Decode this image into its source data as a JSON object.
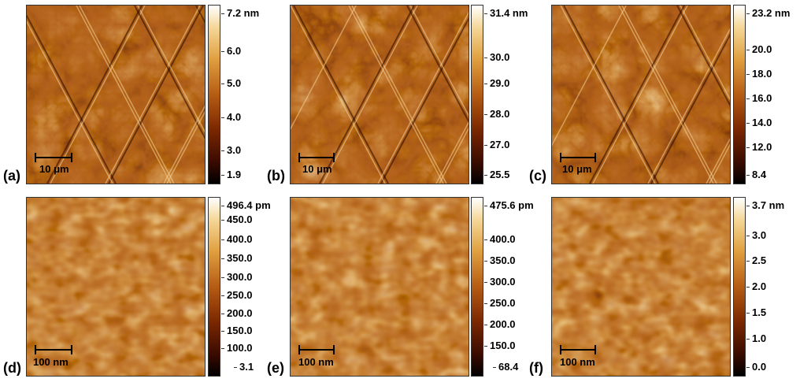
{
  "panels": [
    {
      "label": "(a)",
      "scale": "10 μm",
      "ticks": [
        "7.2 nm",
        "6.0",
        "5.0",
        "4.0",
        "3.0",
        "1.9"
      ]
    },
    {
      "label": "(b)",
      "scale": "10 μm",
      "ticks": [
        "31.4 nm",
        "30.0",
        "29.0",
        "28.0",
        "27.0",
        "25.5"
      ]
    },
    {
      "label": "(c)",
      "scale": "10 μm",
      "ticks": [
        "23.2 nm",
        "20.0",
        "18.0",
        "16.0",
        "14.0",
        "12.0",
        "8.4"
      ]
    },
    {
      "label": "(d)",
      "scale": "100 nm",
      "ticks": [
        "496.4 pm",
        "450.0",
        "400.0",
        "350.0",
        "300.0",
        "250.0",
        "200.0",
        "150.0",
        "100.0",
        "3.1"
      ]
    },
    {
      "label": "(e)",
      "scale": "100 nm",
      "ticks": [
        "475.6 pm",
        "400.0",
        "350.0",
        "300.0",
        "250.0",
        "200.0",
        "150.0",
        "68.4"
      ]
    },
    {
      "label": "(f)",
      "scale": "100 nm",
      "ticks": [
        "3.7 nm",
        "3.0",
        "2.5",
        "2.0",
        "1.5",
        "1.0",
        "0.0"
      ]
    }
  ],
  "colormap": [
    "#000000",
    "#3a0b00",
    "#7a2700",
    "#b55c14",
    "#e0a040",
    "#f5d89a",
    "#ffffff"
  ]
}
